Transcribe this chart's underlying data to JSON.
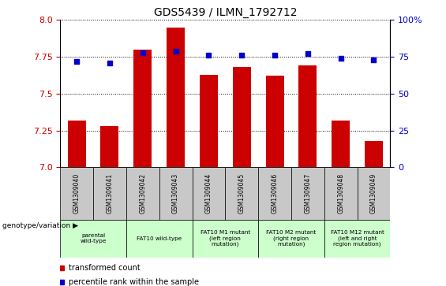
{
  "title": "GDS5439 / ILMN_1792712",
  "samples": [
    "GSM1309040",
    "GSM1309041",
    "GSM1309042",
    "GSM1309043",
    "GSM1309044",
    "GSM1309045",
    "GSM1309046",
    "GSM1309047",
    "GSM1309048",
    "GSM1309049"
  ],
  "transformed_counts": [
    7.32,
    7.28,
    7.8,
    7.95,
    7.63,
    7.68,
    7.62,
    7.69,
    7.32,
    7.18
  ],
  "percentile_ranks": [
    72,
    71,
    78,
    79,
    76,
    76,
    76,
    77,
    74,
    73
  ],
  "ylim_left": [
    7.0,
    8.0
  ],
  "ylim_right": [
    0,
    100
  ],
  "yticks_left": [
    7.0,
    7.25,
    7.5,
    7.75,
    8.0
  ],
  "yticks_right": [
    0,
    25,
    50,
    75,
    100
  ],
  "bar_color": "#cc0000",
  "dot_color": "#0000cc",
  "bar_width": 0.55,
  "genotype_groups": [
    {
      "label": "parental\nwild-type",
      "start": 0,
      "end": 2,
      "color": "#ccffcc"
    },
    {
      "label": "FAT10 wild-type",
      "start": 2,
      "end": 4,
      "color": "#ccffcc"
    },
    {
      "label": "FAT10 M1 mutant\n(left region\nmutation)",
      "start": 4,
      "end": 6,
      "color": "#ccffcc"
    },
    {
      "label": "FAT10 M2 mutant\n(right region\nmutation)",
      "start": 6,
      "end": 8,
      "color": "#ccffcc"
    },
    {
      "label": "FAT10 M12 mutant\n(left and right\nregion mutation)",
      "start": 8,
      "end": 10,
      "color": "#ccffcc"
    }
  ],
  "legend_red_label": "transformed count",
  "legend_blue_label": "percentile rank within the sample",
  "genotype_label": "genotype/variation"
}
